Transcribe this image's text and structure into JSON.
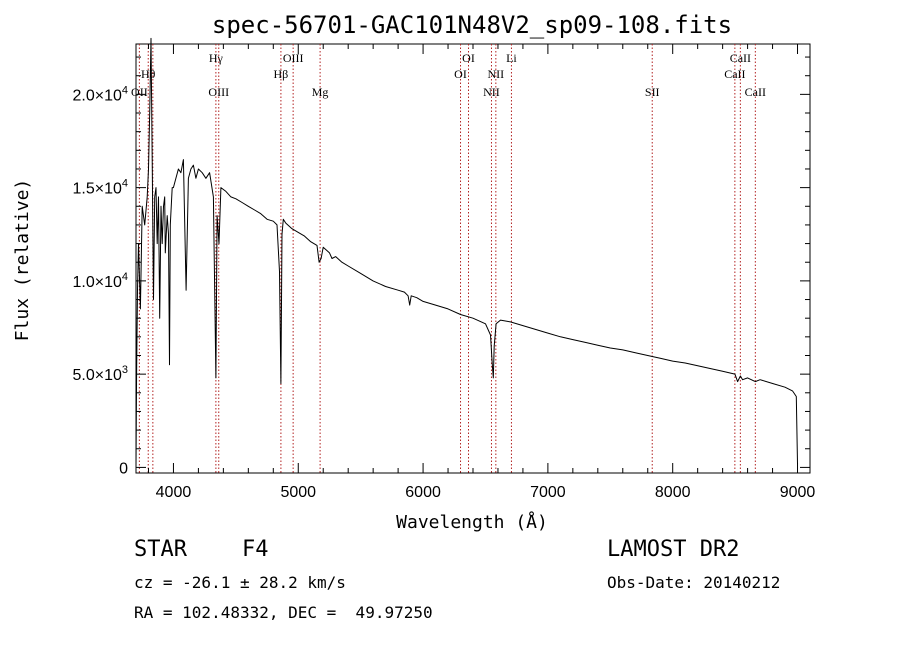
{
  "chart_data": {
    "type": "line",
    "title": "spec-56701-GAC101N48V2_sp09-108.fits",
    "xlabel": "Wavelength (Å)",
    "ylabel": "Flux (relative)",
    "xlim": [
      3700,
      9100
    ],
    "ylim": [
      -300,
      22700
    ],
    "xticks": [
      4000,
      5000,
      6000,
      7000,
      8000,
      9000
    ],
    "xtick_labels": [
      "4000",
      "5000",
      "6000",
      "7000",
      "8000",
      "9000"
    ],
    "yticks": [
      0,
      5000,
      10000,
      15000,
      20000
    ],
    "ytick_labels": [
      {
        "mant": "0",
        "exp": ""
      },
      {
        "mant": "5.0×10",
        "exp": "3"
      },
      {
        "mant": "1.0×10",
        "exp": "4"
      },
      {
        "mant": "1.5×10",
        "exp": "4"
      },
      {
        "mant": "2.0×10",
        "exp": "4"
      }
    ],
    "grid": false,
    "line_color": "#000000",
    "marker_color": "#b22222",
    "series": [
      {
        "x": [
          3700,
          3705,
          3712,
          3720,
          3735,
          3750,
          3770,
          3790,
          3800,
          3810,
          3820,
          3830,
          3840,
          3850,
          3860,
          3870,
          3880,
          3890,
          3900,
          3910,
          3920,
          3930,
          3935,
          3950,
          3960,
          3968,
          3975,
          3990,
          4000,
          4020,
          4040,
          4060,
          4080,
          4101,
          4120,
          4140,
          4160,
          4180,
          4200,
          4230,
          4260,
          4290,
          4320,
          4340,
          4350,
          4365,
          4380,
          4420,
          4460,
          4500,
          4550,
          4600,
          4650,
          4700,
          4750,
          4800,
          4830,
          4850,
          4861,
          4870,
          4880,
          4900,
          4950,
          5000,
          5050,
          5100,
          5150,
          5167,
          5183,
          5200,
          5250,
          5270,
          5300,
          5350,
          5400,
          5500,
          5600,
          5700,
          5800,
          5850,
          5880,
          5893,
          5905,
          5950,
          6000,
          6100,
          6200,
          6300,
          6400,
          6500,
          6540,
          6555,
          6563,
          6570,
          6585,
          6620,
          6700,
          6800,
          6900,
          7000,
          7100,
          7200,
          7300,
          7400,
          7500,
          7600,
          7700,
          7800,
          7900,
          8000,
          8100,
          8200,
          8300,
          8400,
          8498,
          8520,
          8542,
          8560,
          8600,
          8662,
          8700,
          8800,
          8900,
          8960,
          8990,
          9000
        ],
        "y": [
          0,
          5000,
          9500,
          12000,
          8500,
          14000,
          13000,
          14500,
          16000,
          19000,
          23000,
          16500,
          9000,
          14500,
          15000,
          12000,
          14500,
          8000,
          14000,
          12000,
          14000,
          14500,
          11500,
          13500,
          12500,
          5500,
          13000,
          15000,
          15000,
          15500,
          16000,
          15800,
          16500,
          9500,
          15500,
          16000,
          16200,
          15500,
          16000,
          15800,
          15500,
          15800,
          14500,
          4800,
          13500,
          12000,
          15000,
          14800,
          14500,
          14400,
          14200,
          14000,
          13800,
          13600,
          13300,
          13200,
          13000,
          10500,
          4500,
          12500,
          13300,
          13100,
          12800,
          12600,
          12400,
          12100,
          11900,
          11000,
          11200,
          11800,
          11500,
          11200,
          11300,
          11000,
          10800,
          10400,
          10000,
          9700,
          9500,
          9400,
          9200,
          8700,
          9200,
          9100,
          8900,
          8700,
          8500,
          8200,
          8000,
          7700,
          7100,
          5500,
          4800,
          6500,
          7700,
          7900,
          7800,
          7600,
          7400,
          7200,
          7000,
          6850,
          6700,
          6550,
          6400,
          6300,
          6150,
          6000,
          5850,
          5700,
          5600,
          5450,
          5300,
          5150,
          5000,
          4600,
          4900,
          4700,
          4800,
          4600,
          4700,
          4500,
          4300,
          4100,
          3800,
          200
        ]
      }
    ],
    "line_markers": [
      {
        "x": 3727,
        "label": "OII",
        "row": 3
      },
      {
        "x": 3798,
        "label": "Hθ",
        "row": 2
      },
      {
        "x": 3835,
        "label": "",
        "row": 0
      },
      {
        "x": 4340,
        "label": "Hγ",
        "row": 1
      },
      {
        "x": 4363,
        "label": "OIII",
        "row": 3
      },
      {
        "x": 4861,
        "label": "Hβ",
        "row": 2
      },
      {
        "x": 4959,
        "label": "OIII",
        "row": 1
      },
      {
        "x": 5175,
        "label": "Mg",
        "row": 3
      },
      {
        "x": 6300,
        "label": "OI",
        "row": 2
      },
      {
        "x": 6364,
        "label": "OI",
        "row": 1
      },
      {
        "x": 6548,
        "label": "NII",
        "row": 3
      },
      {
        "x": 6583,
        "label": "NII",
        "row": 2
      },
      {
        "x": 6708,
        "label": "Li",
        "row": 1
      },
      {
        "x": 7836,
        "label": "SII",
        "row": 3
      },
      {
        "x": 8498,
        "label": "CaII",
        "row": 2
      },
      {
        "x": 8542,
        "label": "CaII",
        "row": 1
      },
      {
        "x": 8662,
        "label": "CaII",
        "row": 3
      }
    ]
  },
  "info": {
    "object_class": "STAR",
    "subclass": "F4",
    "survey": "LAMOST DR2",
    "redshift_line": "cz = -26.1 ± 28.2 km/s",
    "obs_date": "Obs-Date: 20140212",
    "coords": "RA = 102.48332, DEC =  49.97250"
  }
}
